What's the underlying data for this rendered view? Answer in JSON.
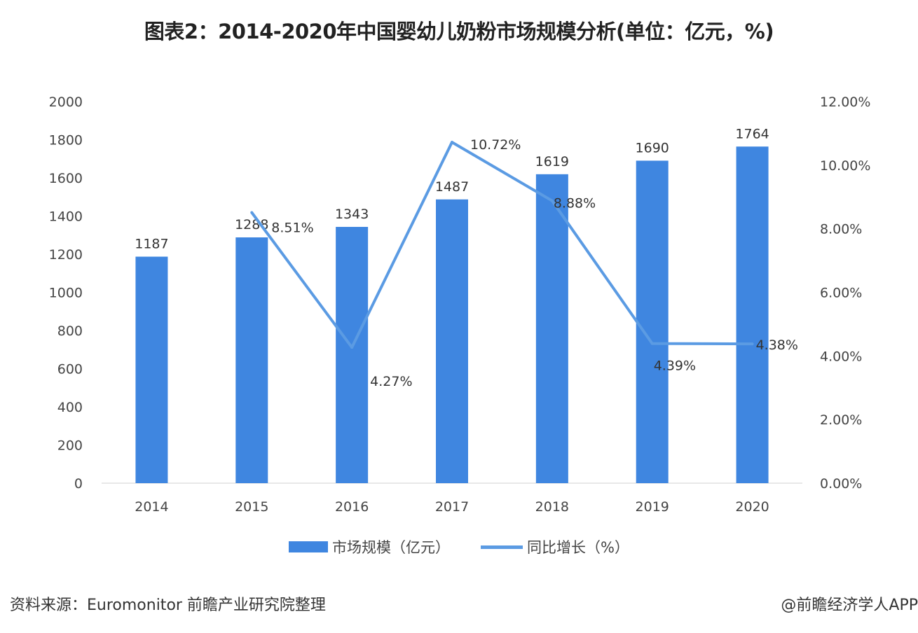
{
  "title": "图表2：2014-2020年中国婴幼儿奶粉市场规模分析(单位：亿元，%)",
  "chart_data": {
    "type": "bar+line",
    "categories": [
      "2014",
      "2015",
      "2016",
      "2017",
      "2018",
      "2019",
      "2020"
    ],
    "series": [
      {
        "name": "市场规模（亿元）",
        "type": "bar",
        "axis": "left",
        "color": "#3f86e0",
        "values": [
          1187,
          1288,
          1343,
          1487,
          1619,
          1690,
          1764
        ],
        "labels": [
          "1187",
          "1288",
          "1343",
          "1487",
          "1619",
          "1690",
          "1764"
        ]
      },
      {
        "name": "同比增长（%）",
        "type": "line",
        "axis": "right",
        "color": "#5b9be3",
        "values": [
          null,
          8.51,
          4.27,
          10.72,
          8.88,
          4.39,
          4.38
        ],
        "labels": [
          "",
          "8.51%",
          "4.27%",
          "10.72%",
          "8.88%",
          "4.39%",
          "4.38%"
        ]
      }
    ],
    "y_left": {
      "range": [
        0,
        2000
      ],
      "ticks": [
        "0",
        "200",
        "400",
        "600",
        "800",
        "1000",
        "1200",
        "1400",
        "1600",
        "1800",
        "2000"
      ]
    },
    "y_right": {
      "range": [
        0,
        12
      ],
      "ticks": [
        "0.00%",
        "2.00%",
        "4.00%",
        "6.00%",
        "8.00%",
        "10.00%",
        "12.00%"
      ]
    },
    "grid": false,
    "legend": "bottom"
  },
  "source": "资料来源：Euromonitor 前瞻产业研究院整理",
  "credit": "@前瞻经济学人APP"
}
